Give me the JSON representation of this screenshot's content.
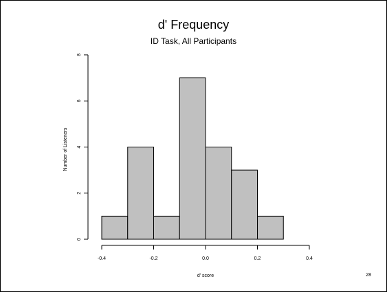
{
  "page_number": "28",
  "colors": {
    "bar_fill": "#c0c0c0",
    "bar_stroke": "#000000",
    "axis": "#000000"
  },
  "chart_data": {
    "type": "bar",
    "title": "d' Frequency",
    "subtitle": "ID Task, All Participants",
    "xlabel": "d' score",
    "ylabel": "Number of Listeners",
    "xlim": [
      -0.4,
      0.4
    ],
    "ylim": [
      0,
      8
    ],
    "bins": [
      {
        "x0": -0.4,
        "x1": -0.3,
        "count": 1
      },
      {
        "x0": -0.3,
        "x1": -0.2,
        "count": 4
      },
      {
        "x0": -0.2,
        "x1": -0.1,
        "count": 1
      },
      {
        "x0": -0.1,
        "x1": 0.0,
        "count": 7
      },
      {
        "x0": 0.0,
        "x1": 0.1,
        "count": 4
      },
      {
        "x0": 0.1,
        "x1": 0.2,
        "count": 3
      },
      {
        "x0": 0.2,
        "x1": 0.3,
        "count": 1
      }
    ],
    "x_ticks": [
      {
        "value": -0.4,
        "label": "-0.4"
      },
      {
        "value": -0.2,
        "label": "-0.2"
      },
      {
        "value": 0.0,
        "label": "0.0"
      },
      {
        "value": 0.2,
        "label": "0.2"
      },
      {
        "value": 0.4,
        "label": "0.4"
      }
    ],
    "y_ticks": [
      {
        "value": 0,
        "label": "0"
      },
      {
        "value": 2,
        "label": "2"
      },
      {
        "value": 4,
        "label": "4"
      },
      {
        "value": 6,
        "label": "6"
      },
      {
        "value": 8,
        "label": "8"
      }
    ],
    "grid": false,
    "legend": "none"
  }
}
